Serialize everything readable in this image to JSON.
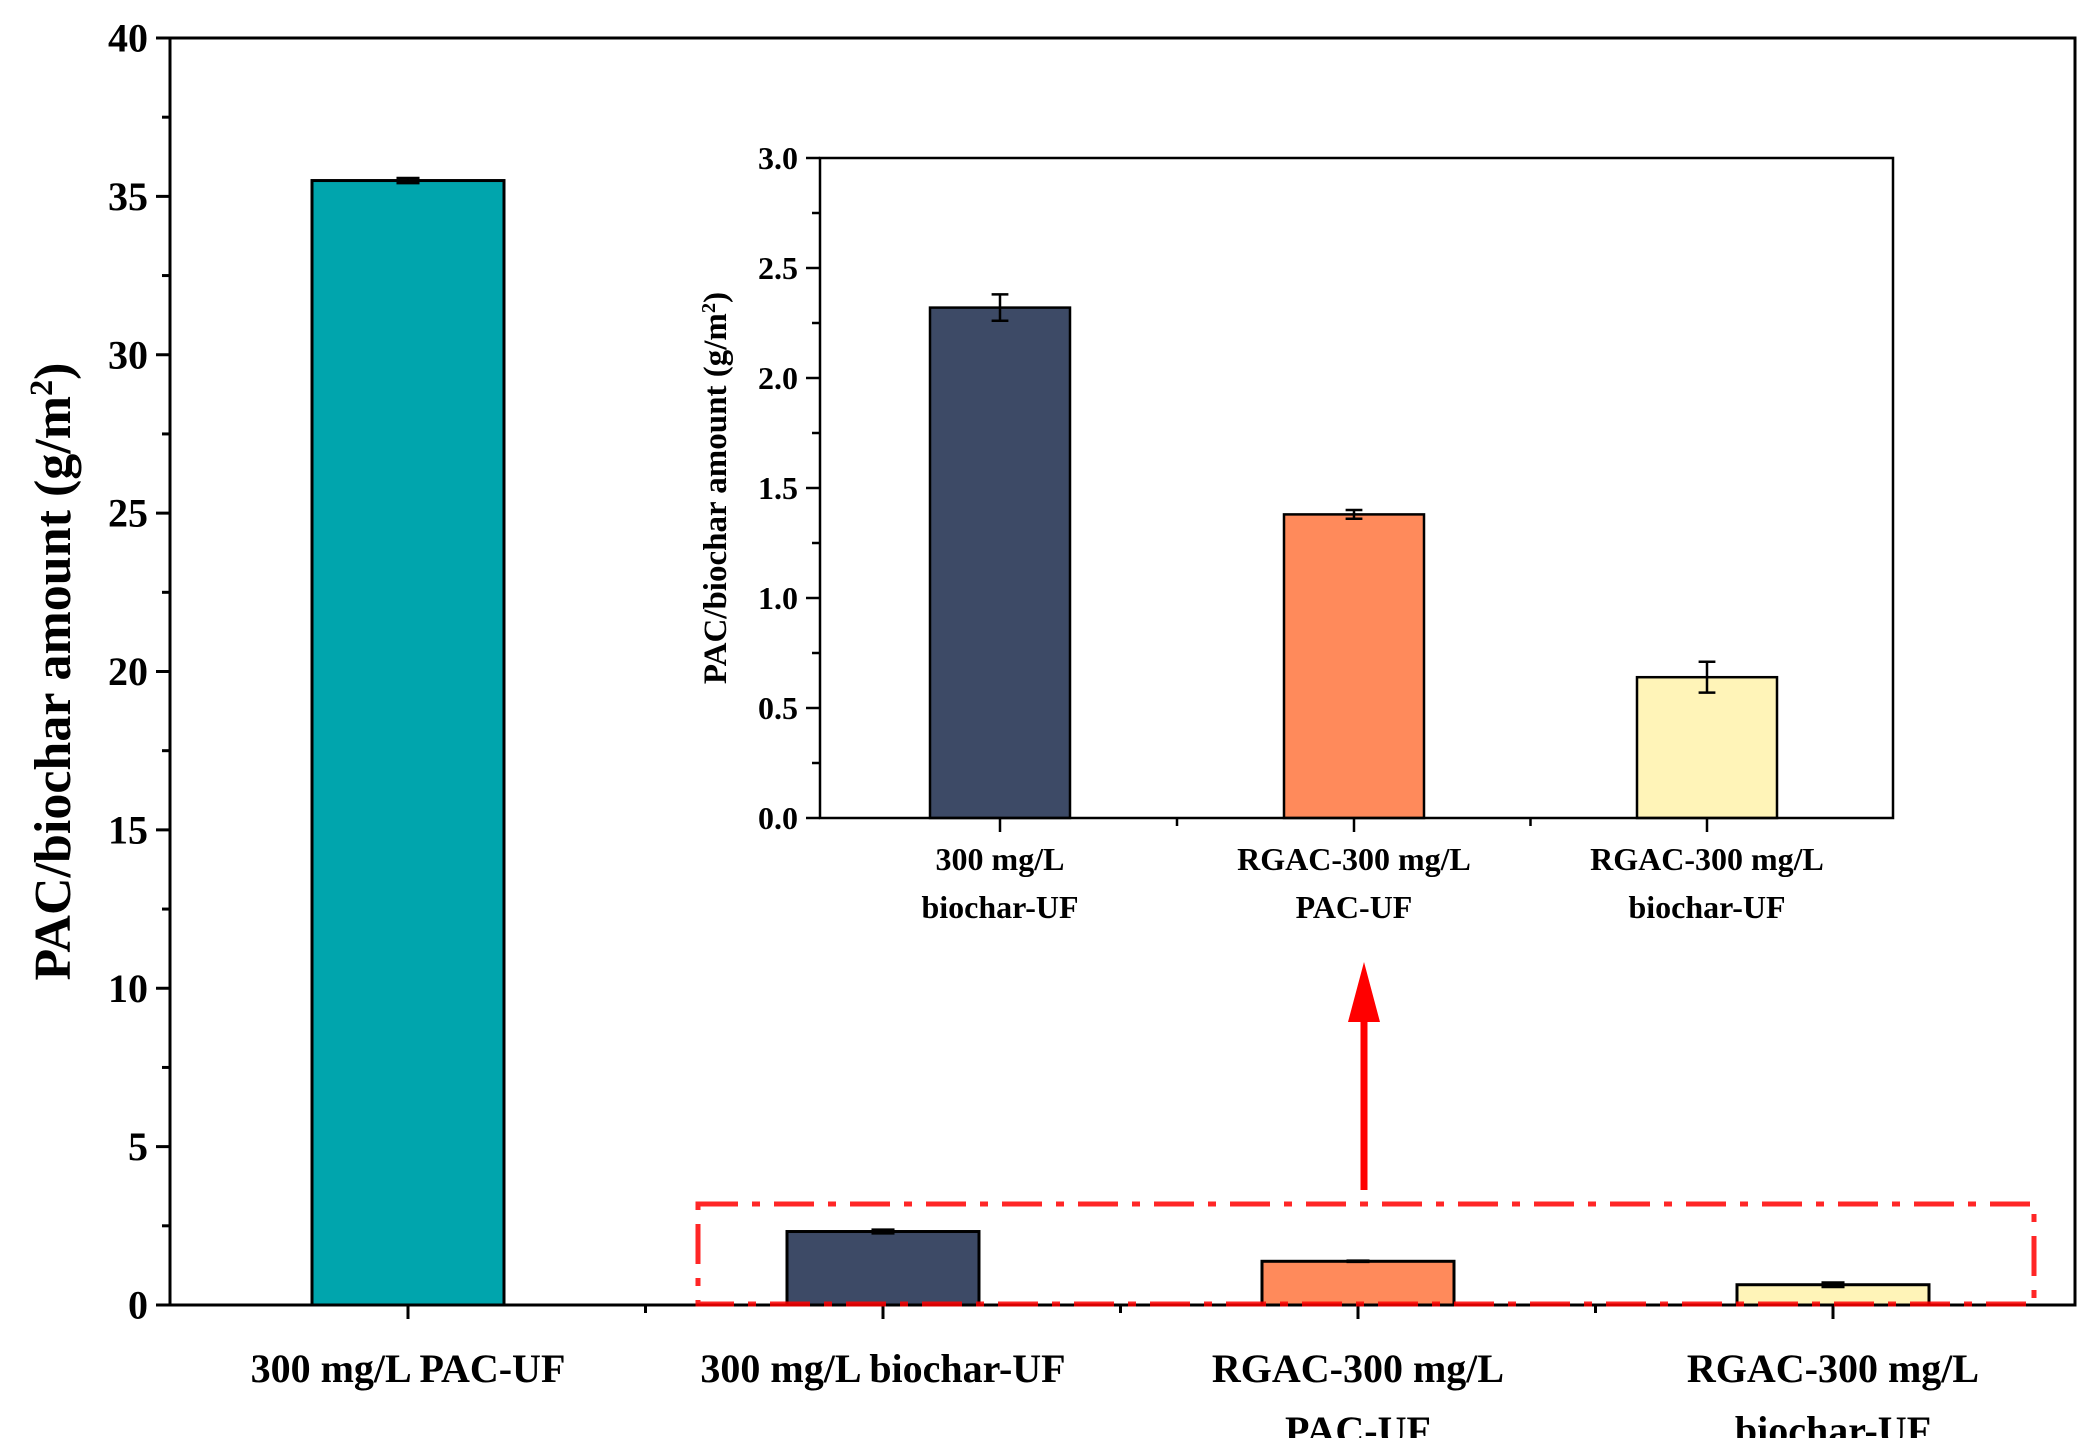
{
  "chart_data": [
    {
      "id": "main",
      "type": "bar",
      "title": "",
      "xlabel": "",
      "ylabel": "PAC/biochar amount (g/m",
      "ylabel_sup": "2",
      "ylabel_close": ")",
      "ylim": [
        0,
        40
      ],
      "yticks": [
        "0",
        "5",
        "10",
        "15",
        "20",
        "25",
        "30",
        "35",
        "40"
      ],
      "ytick_values": [
        0,
        5,
        10,
        15,
        20,
        25,
        30,
        35,
        40
      ],
      "categories": [
        [
          "300 mg/L PAC-UF"
        ],
        [
          "300 mg/L biochar-UF"
        ],
        [
          "RGAC-300 mg/L",
          "PAC-UF"
        ],
        [
          "RGAC-300 mg/L",
          "biochar-UF"
        ]
      ],
      "values": [
        35.5,
        2.32,
        1.38,
        0.64
      ],
      "errors": [
        0.08,
        0.06,
        0.02,
        0.07
      ],
      "colors": [
        "#00a5ad",
        "#3d4a66",
        "#ff8a5b",
        "#fff4b8"
      ]
    },
    {
      "id": "inset",
      "type": "bar",
      "title": "",
      "xlabel": "",
      "ylabel": "PAC/biochar amount (g/m",
      "ylabel_sup": "2",
      "ylabel_close": ")",
      "ylim": [
        0,
        3.0
      ],
      "yticks": [
        "0.0",
        "0.5",
        "1.0",
        "1.5",
        "2.0",
        "2.5",
        "3.0"
      ],
      "ytick_values": [
        0,
        0.5,
        1.0,
        1.5,
        2.0,
        2.5,
        3.0
      ],
      "categories": [
        [
          "300 mg/L",
          "biochar-UF"
        ],
        [
          "RGAC-300 mg/L",
          "PAC-UF"
        ],
        [
          "RGAC-300 mg/L",
          "biochar-UF"
        ]
      ],
      "values": [
        2.32,
        1.38,
        0.64
      ],
      "errors": [
        0.06,
        0.02,
        0.07
      ],
      "colors": [
        "#3d4a66",
        "#ff8a5b",
        "#fff4b8"
      ]
    }
  ],
  "annotation": {
    "highlight_color": "#ff0000",
    "arrow_color": "#ff0000"
  }
}
